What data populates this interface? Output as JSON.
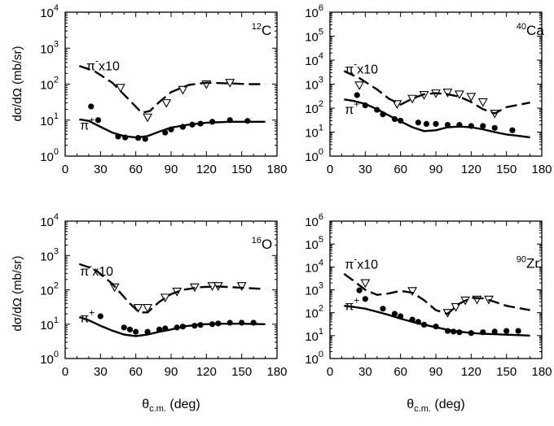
{
  "figure": {
    "ylabel": "dσ/dΩ (mb/sr)",
    "xlabel_main": "θ",
    "xlabel_sub": "c.m.",
    "xlabel_unit": " (deg)"
  },
  "chart_data": [
    {
      "type": "scatter",
      "nucleus_mass": "12",
      "nucleus_symbol": "C",
      "ylim_exp": [
        0,
        4
      ],
      "xlim": [
        0,
        180
      ],
      "x_ticks": [
        0,
        30,
        60,
        90,
        120,
        150,
        180
      ],
      "piminus_label": "π",
      "piminus_sup": "-",
      "piminus_suffix": "x10",
      "piplus_label": "π",
      "piplus_sup": "+",
      "series": [
        {
          "name": "π⁻ x10 data",
          "marker": "triangle-down",
          "x": [
            47,
            70,
            86,
            100,
            120,
            140
          ],
          "y": [
            80,
            12,
            30,
            70,
            100,
            110
          ]
        },
        {
          "name": "π⁺ data",
          "marker": "filled-circle",
          "x": [
            22,
            28,
            45,
            51,
            62,
            68,
            85,
            90,
            100,
            108,
            115,
            125,
            140,
            155
          ],
          "y": [
            24,
            10,
            3.5,
            3.3,
            3.2,
            3.0,
            4.5,
            5.5,
            6.5,
            7.5,
            8,
            9,
            10,
            9.5
          ]
        },
        {
          "name": "π⁻ x10 calc",
          "style": "dashed",
          "x": [
            12,
            25,
            40,
            55,
            65,
            72,
            80,
            90,
            105,
            120,
            140,
            155,
            170
          ],
          "y": [
            320,
            230,
            110,
            35,
            16,
            18,
            32,
            60,
            95,
            110,
            105,
            100,
            100
          ]
        },
        {
          "name": "π⁺ calc",
          "style": "solid",
          "x": [
            12,
            20,
            30,
            40,
            50,
            60,
            70,
            80,
            90,
            105,
            120,
            140,
            160,
            170
          ],
          "y": [
            10.5,
            9.5,
            6.5,
            4.5,
            3.6,
            3.3,
            3.6,
            4.8,
            6.2,
            7.5,
            8.5,
            9.0,
            9.0,
            9.0
          ]
        }
      ]
    },
    {
      "type": "scatter",
      "nucleus_mass": "40",
      "nucleus_symbol": "Ca",
      "ylim_exp": [
        0,
        6
      ],
      "xlim": [
        0,
        180
      ],
      "x_ticks": [
        0,
        30,
        60,
        90,
        120,
        150,
        180
      ],
      "piminus_label": "π",
      "piminus_sup": "-",
      "piminus_suffix": "x10",
      "piplus_label": "π",
      "piplus_sup": "+",
      "series": [
        {
          "name": "π⁻ x10 data",
          "marker": "triangle-down",
          "x": [
            25,
            57,
            70,
            80,
            90,
            100,
            110,
            120,
            130,
            140
          ],
          "y": [
            900,
            150,
            250,
            360,
            420,
            450,
            380,
            300,
            180,
            60
          ]
        },
        {
          "name": "π⁺ data",
          "marker": "filled-circle",
          "x": [
            23,
            30,
            40,
            45,
            55,
            60,
            75,
            82,
            90,
            100,
            110,
            120,
            130,
            140,
            155
          ],
          "y": [
            350,
            130,
            85,
            55,
            35,
            30,
            25,
            22,
            22,
            20,
            20,
            18,
            18,
            15,
            12
          ]
        },
        {
          "name": "π⁻ x10 calc",
          "style": "dashed",
          "x": [
            12,
            25,
            40,
            50,
            60,
            70,
            80,
            90,
            100,
            110,
            120,
            130,
            140,
            150,
            170
          ],
          "y": [
            3500,
            1800,
            600,
            250,
            140,
            250,
            380,
            420,
            380,
            300,
            180,
            90,
            60,
            110,
            170
          ]
        },
        {
          "name": "π⁺ calc",
          "style": "solid",
          "x": [
            12,
            20,
            30,
            40,
            50,
            60,
            70,
            80,
            90,
            100,
            110,
            120,
            130,
            140,
            150,
            160,
            170
          ],
          "y": [
            230,
            200,
            150,
            90,
            50,
            28,
            16,
            11,
            12,
            16,
            17,
            16,
            13,
            10,
            8,
            7,
            6
          ]
        }
      ]
    },
    {
      "type": "scatter",
      "nucleus_mass": "16",
      "nucleus_symbol": "O",
      "ylim_exp": [
        0,
        4
      ],
      "xlim": [
        0,
        180
      ],
      "x_ticks": [
        0,
        30,
        60,
        90,
        120,
        150,
        180
      ],
      "piminus_label": "π",
      "piminus_sup": "-",
      "piminus_suffix": "x10",
      "piplus_label": "π",
      "piplus_sup": "+",
      "series": [
        {
          "name": "π⁻ x10 data",
          "marker": "triangle-down",
          "x": [
            42,
            62,
            70,
            85,
            95,
            110,
            125,
            130,
            150
          ],
          "y": [
            120,
            30,
            30,
            60,
            90,
            120,
            130,
            130,
            130
          ]
        },
        {
          "name": "π⁺ data",
          "marker": "filled-circle",
          "x": [
            30,
            50,
            55,
            60,
            70,
            80,
            85,
            95,
            100,
            110,
            115,
            125,
            130,
            140,
            150,
            160
          ],
          "y": [
            17,
            8,
            7,
            6,
            6,
            7,
            7.5,
            8,
            8.5,
            9,
            9.5,
            10,
            10.5,
            11,
            11,
            11
          ]
        },
        {
          "name": "π⁻ x10 calc",
          "style": "dashed",
          "x": [
            12,
            25,
            40,
            55,
            63,
            70,
            80,
            90,
            100,
            115,
            130,
            150,
            170
          ],
          "y": [
            560,
            400,
            150,
            40,
            22,
            22,
            45,
            75,
            100,
            120,
            125,
            115,
            105
          ]
        },
        {
          "name": "π⁺ calc",
          "style": "solid",
          "x": [
            12,
            20,
            30,
            40,
            50,
            60,
            70,
            80,
            90,
            100,
            115,
            130,
            150,
            170
          ],
          "y": [
            16,
            13,
            9,
            6.5,
            5,
            4.5,
            5,
            6,
            7,
            8.5,
            9.8,
            10.3,
            10.3,
            10
          ]
        }
      ]
    },
    {
      "type": "scatter",
      "nucleus_mass": "90",
      "nucleus_symbol": "Zr",
      "ylim_exp": [
        0,
        6
      ],
      "xlim": [
        0,
        180
      ],
      "x_ticks": [
        0,
        30,
        60,
        90,
        120,
        150,
        180
      ],
      "piminus_label": "π",
      "piminus_sup": "-",
      "piminus_suffix": "x10",
      "piplus_label": "π",
      "piplus_sup": "+",
      "series": [
        {
          "name": "π⁻ x10 data",
          "marker": "triangle-down",
          "x": [
            30,
            70,
            100,
            107,
            115,
            125,
            135
          ],
          "y": [
            2000,
            900,
            100,
            180,
            350,
            380,
            380
          ]
        },
        {
          "name": "π⁺ data",
          "marker": "filled-circle",
          "x": [
            25,
            30,
            45,
            55,
            60,
            70,
            75,
            80,
            90,
            100,
            105,
            110,
            120,
            130,
            140,
            150,
            160
          ],
          "y": [
            950,
            400,
            150,
            90,
            70,
            50,
            40,
            30,
            25,
            16,
            15,
            14,
            13,
            14,
            15,
            16,
            16
          ]
        },
        {
          "name": "π⁻ x10 calc",
          "style": "dashed",
          "x": [
            12,
            20,
            30,
            40,
            50,
            60,
            70,
            80,
            90,
            100,
            110,
            120,
            130,
            140,
            150,
            170
          ],
          "y": [
            5000,
            2500,
            1000,
            600,
            700,
            900,
            750,
            350,
            130,
            90,
            250,
            450,
            420,
            300,
            200,
            130
          ]
        },
        {
          "name": "π⁺ calc",
          "style": "solid",
          "x": [
            12,
            20,
            30,
            40,
            50,
            60,
            70,
            80,
            90,
            100,
            110,
            120,
            130,
            140,
            150,
            160,
            170
          ],
          "y": [
            200,
            180,
            150,
            110,
            80,
            55,
            40,
            30,
            23,
            18,
            15,
            13,
            12,
            11.5,
            11,
            10.5,
            10
          ]
        }
      ]
    }
  ]
}
